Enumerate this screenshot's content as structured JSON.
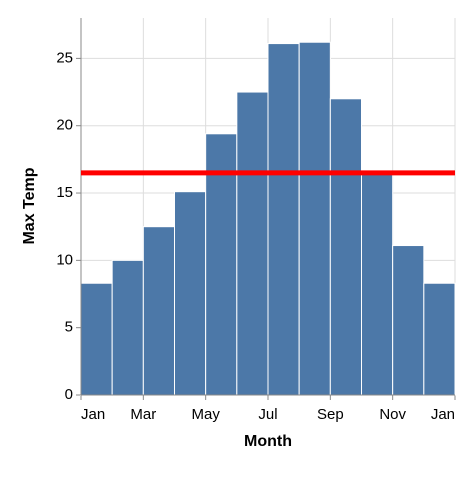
{
  "chart_data": {
    "type": "bar",
    "x_label": "Month",
    "y_label": "Max Temp",
    "x": [
      0,
      1,
      2,
      3,
      4,
      5,
      6,
      7,
      8,
      9,
      10,
      11
    ],
    "values": [
      8.3,
      10,
      12.5,
      15.1,
      19.4,
      22.5,
      26.1,
      26.2,
      22,
      16.5,
      11.1,
      8.3
    ],
    "color": "#4c78a8",
    "xlim": [
      0,
      12
    ],
    "xticks": [
      {
        "value": 0,
        "label": "Jan"
      },
      {
        "value": 2,
        "label": "Mar"
      },
      {
        "value": 4,
        "label": "May"
      },
      {
        "value": 6,
        "label": "Jul"
      },
      {
        "value": 8,
        "label": "Sep"
      },
      {
        "value": 10,
        "label": "Nov"
      },
      {
        "value": 12,
        "label": "Jan"
      }
    ],
    "ylim": [
      0,
      28
    ],
    "yticks": [
      0,
      5,
      10,
      15,
      20,
      25
    ],
    "grid": true,
    "rule": {
      "value": 16.5,
      "color": "#ff0000"
    }
  }
}
